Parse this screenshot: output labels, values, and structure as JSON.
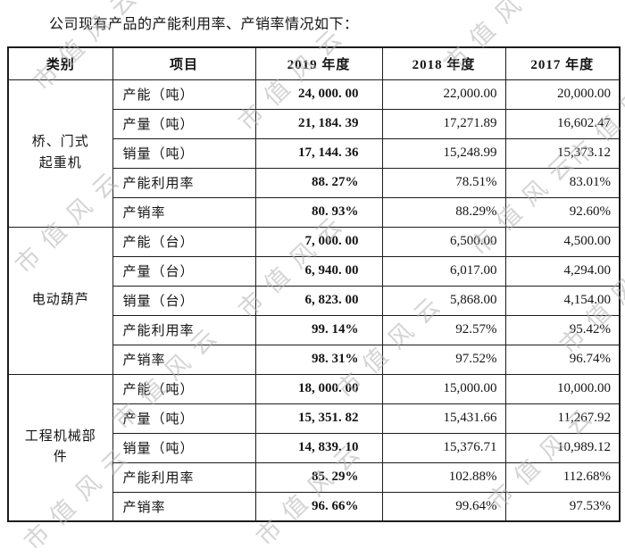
{
  "title": "公司现有产品的产能利用率、产销率情况如下：",
  "watermark": {
    "text": "市值风云"
  },
  "table": {
    "headers": [
      "类别",
      "项目",
      "2019 年度",
      "2018 年度",
      "2017 年度"
    ],
    "groups": [
      {
        "category": "桥、门式\n起重机",
        "rows": [
          {
            "item": "产能（吨）",
            "y2019": "24, 000. 00",
            "y2018": "22,000.00",
            "y2017": "20,000.00"
          },
          {
            "item": "产量（吨）",
            "y2019": "21, 184. 39",
            "y2018": "17,271.89",
            "y2017": "16,602.47"
          },
          {
            "item": "销量（吨）",
            "y2019": "17, 144. 36",
            "y2018": "15,248.99",
            "y2017": "15,373.12"
          },
          {
            "item": "产能利用率",
            "y2019": "88. 27%",
            "y2018": "78.51%",
            "y2017": "83.01%"
          },
          {
            "item": "产销率",
            "y2019": "80. 93%",
            "y2018": "88.29%",
            "y2017": "92.60%"
          }
        ]
      },
      {
        "category": "电动葫芦",
        "rows": [
          {
            "item": "产能（台）",
            "y2019": "7, 000. 00",
            "y2018": "6,500.00",
            "y2017": "4,500.00"
          },
          {
            "item": "产量（台）",
            "y2019": "6, 940. 00",
            "y2018": "6,017.00",
            "y2017": "4,294.00"
          },
          {
            "item": "销量（台）",
            "y2019": "6, 823. 00",
            "y2018": "5,868.00",
            "y2017": "4,154.00"
          },
          {
            "item": "产能利用率",
            "y2019": "99. 14%",
            "y2018": "92.57%",
            "y2017": "95.42%"
          },
          {
            "item": "产销率",
            "y2019": "98. 31%",
            "y2018": "97.52%",
            "y2017": "96.74%"
          }
        ]
      },
      {
        "category": "工程机械部\n件",
        "rows": [
          {
            "item": "产能（吨）",
            "y2019": "18, 000. 00",
            "y2018": "15,000.00",
            "y2017": "10,000.00"
          },
          {
            "item": "产量（吨）",
            "y2019": "15, 351. 82",
            "y2018": "15,431.66",
            "y2017": "11,267.92"
          },
          {
            "item": "销量（吨）",
            "y2019": "14, 839. 10",
            "y2018": "15,376.71",
            "y2017": "10,989.12"
          },
          {
            "item": "产能利用率",
            "y2019": "85. 29%",
            "y2018": "102.88%",
            "y2017": "112.68%"
          },
          {
            "item": "产销率",
            "y2019": "96. 66%",
            "y2018": "99.64%",
            "y2017": "97.53%"
          }
        ]
      }
    ]
  }
}
